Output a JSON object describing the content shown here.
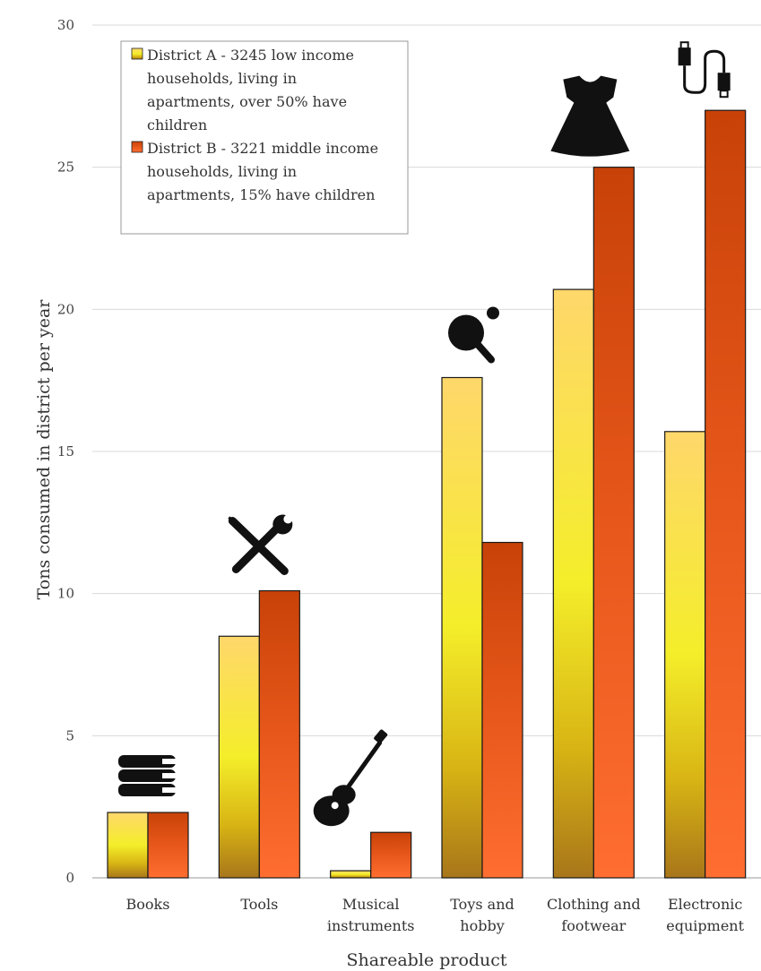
{
  "chart_data": {
    "type": "bar",
    "title": "",
    "xlabel": "Shareable product",
    "ylabel": "Tons consumed in district per year",
    "ylim": [
      0,
      30
    ],
    "yticks": [
      0,
      5,
      10,
      15,
      20,
      25,
      30
    ],
    "grid": true,
    "legend_position": "top-left",
    "categories": [
      [
        "Books"
      ],
      [
        "Tools"
      ],
      [
        "Musical",
        "instruments"
      ],
      [
        "Toys and",
        "hobby"
      ],
      [
        "Clothing and",
        "footwear"
      ],
      [
        "Electronic",
        "equipment"
      ]
    ],
    "category_icons": [
      "books-icon",
      "tools-icon",
      "guitar-icon",
      "ping-pong-icon",
      "dress-icon",
      "usb-cable-icon"
    ],
    "series": [
      {
        "name": "District A - 3245 low income households, living in apartments, over 50% have children",
        "legend_lines": [
          "District A - 3245 low income",
          "households, living in",
          "apartments, over 50% have",
          "children"
        ],
        "values": [
          2.3,
          8.5,
          0.25,
          17.6,
          20.7,
          15.7
        ],
        "color": "#F2E22C"
      },
      {
        "name": "District B - 3221 middle income households, living in apartments, 15% have children",
        "legend_lines": [
          "District B - 3221 middle income",
          "households, living in",
          "apartments, 15% have children"
        ],
        "values": [
          2.3,
          10.1,
          1.6,
          11.8,
          25.0,
          27.0
        ],
        "color": "#D2490E"
      }
    ]
  }
}
